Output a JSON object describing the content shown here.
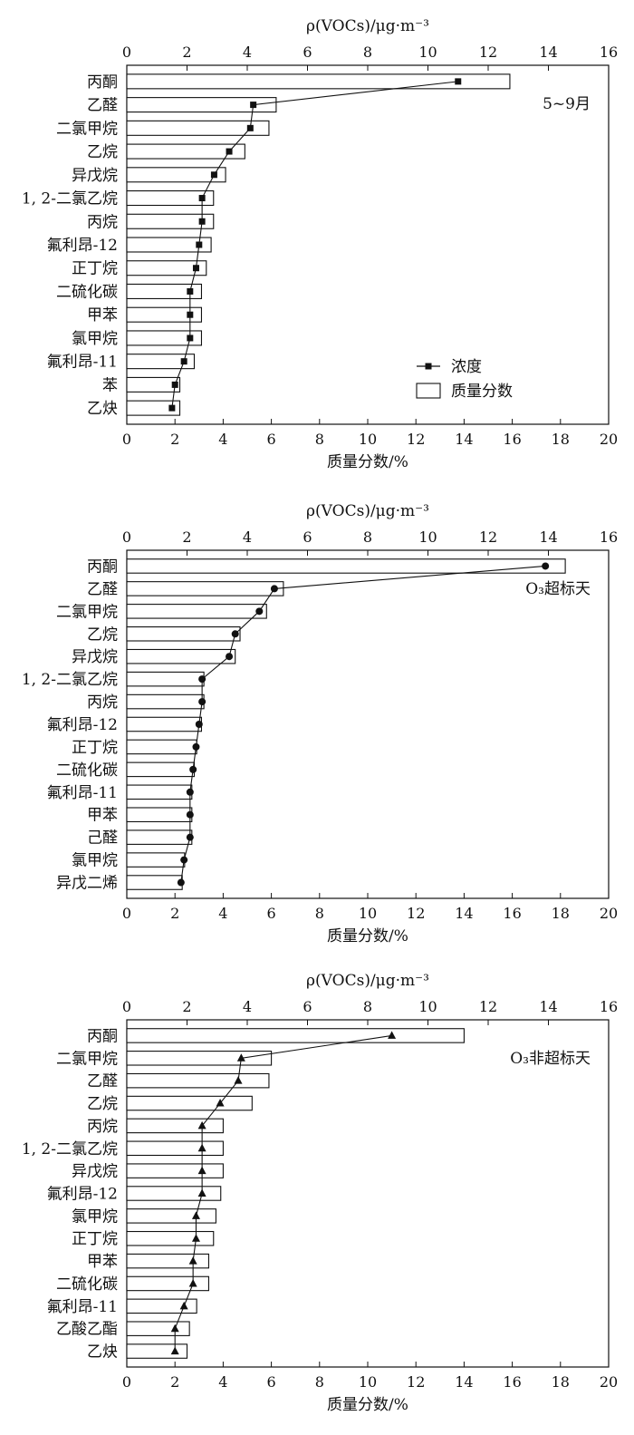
{
  "chart_data": [
    {
      "type": "bar",
      "annotation": "5~9月",
      "top_axis_label": "ρ(VOCs)/μg·m⁻³",
      "bottom_axis_label": "质量分数/%",
      "top_axis_ticks": [
        "0",
        "2",
        "4",
        "6",
        "8",
        "10",
        "12",
        "14",
        "16"
      ],
      "bottom_axis_ticks": [
        "0",
        "2",
        "4",
        "6",
        "8",
        "10",
        "12",
        "14",
        "16",
        "18",
        "20"
      ],
      "top_axis_range": [
        0,
        16
      ],
      "bottom_axis_range": [
        0,
        20
      ],
      "categories": [
        "丙酮",
        "乙醛",
        "二氯甲烷",
        "乙烷",
        "异戊烷",
        "1, 2-二氯乙烷",
        "丙烷",
        "氟利昂-12",
        "正丁烷",
        "二硫化碳",
        "甲苯",
        "氯甲烷",
        "氟利昂-11",
        "苯",
        "乙炔"
      ],
      "series": [
        {
          "name": "质量分数",
          "kind": "bar",
          "axis": "bottom",
          "values": [
            15.9,
            6.2,
            5.9,
            4.9,
            4.1,
            3.6,
            3.6,
            3.5,
            3.3,
            3.1,
            3.1,
            3.1,
            2.8,
            2.2,
            2.2
          ]
        },
        {
          "name": "浓度",
          "kind": "line",
          "axis": "top",
          "marker": "square",
          "values": [
            11.0,
            4.2,
            4.1,
            3.4,
            2.9,
            2.5,
            2.5,
            2.4,
            2.3,
            2.1,
            2.1,
            2.1,
            1.9,
            1.6,
            1.5
          ]
        }
      ],
      "legend": {
        "position": "bottom-right",
        "line_label": "浓度",
        "bar_label": "质量分数"
      }
    },
    {
      "type": "bar",
      "annotation": "O₃超标天",
      "top_axis_label": "ρ(VOCs)/μg·m⁻³",
      "bottom_axis_label": "质量分数/%",
      "top_axis_ticks": [
        "0",
        "2",
        "4",
        "6",
        "8",
        "10",
        "12",
        "14",
        "16"
      ],
      "bottom_axis_ticks": [
        "0",
        "2",
        "4",
        "6",
        "8",
        "10",
        "12",
        "14",
        "16",
        "18",
        "20"
      ],
      "top_axis_range": [
        0,
        16
      ],
      "bottom_axis_range": [
        0,
        20
      ],
      "categories": [
        "丙酮",
        "乙醛",
        "二氯甲烷",
        "乙烷",
        "异戊烷",
        "1, 2-二氯乙烷",
        "丙烷",
        "氟利昂-12",
        "正丁烷",
        "二硫化碳",
        "氟利昂-11",
        "甲苯",
        "己醛",
        "氯甲烷",
        "异戊二烯"
      ],
      "series": [
        {
          "name": "质量分数",
          "kind": "bar",
          "axis": "bottom",
          "values": [
            18.2,
            6.5,
            5.8,
            4.7,
            4.5,
            3.2,
            3.2,
            3.1,
            2.9,
            2.8,
            2.7,
            2.7,
            2.7,
            2.4,
            2.3
          ]
        },
        {
          "name": "浓度",
          "kind": "line",
          "axis": "top",
          "marker": "circle",
          "values": [
            13.9,
            4.9,
            4.4,
            3.6,
            3.4,
            2.5,
            2.5,
            2.4,
            2.3,
            2.2,
            2.1,
            2.1,
            2.1,
            1.9,
            1.8
          ]
        }
      ]
    },
    {
      "type": "bar",
      "annotation": "O₃非超标天",
      "top_axis_label": "ρ(VOCs)/μg·m⁻³",
      "bottom_axis_label": "质量分数/%",
      "top_axis_ticks": [
        "0",
        "2",
        "4",
        "6",
        "8",
        "10",
        "12",
        "14",
        "16"
      ],
      "bottom_axis_ticks": [
        "0",
        "2",
        "4",
        "6",
        "8",
        "10",
        "12",
        "14",
        "16",
        "18",
        "20"
      ],
      "top_axis_range": [
        0,
        16
      ],
      "bottom_axis_range": [
        0,
        20
      ],
      "categories": [
        "丙酮",
        "二氯甲烷",
        "乙醛",
        "乙烷",
        "丙烷",
        "1, 2-二氯乙烷",
        "异戊烷",
        "氟利昂-12",
        "氯甲烷",
        "正丁烷",
        "甲苯",
        "二硫化碳",
        "氟利昂-11",
        "乙酸乙酯",
        "乙炔"
      ],
      "series": [
        {
          "name": "质量分数",
          "kind": "bar",
          "axis": "bottom",
          "values": [
            14.0,
            6.0,
            5.9,
            5.2,
            4.0,
            4.0,
            4.0,
            3.9,
            3.7,
            3.6,
            3.4,
            3.4,
            2.9,
            2.6,
            2.5
          ]
        },
        {
          "name": "浓度",
          "kind": "line",
          "axis": "top",
          "marker": "triangle",
          "values": [
            8.8,
            3.8,
            3.7,
            3.1,
            2.5,
            2.5,
            2.5,
            2.5,
            2.3,
            2.3,
            2.2,
            2.2,
            1.9,
            1.6,
            1.6
          ]
        }
      ]
    }
  ]
}
